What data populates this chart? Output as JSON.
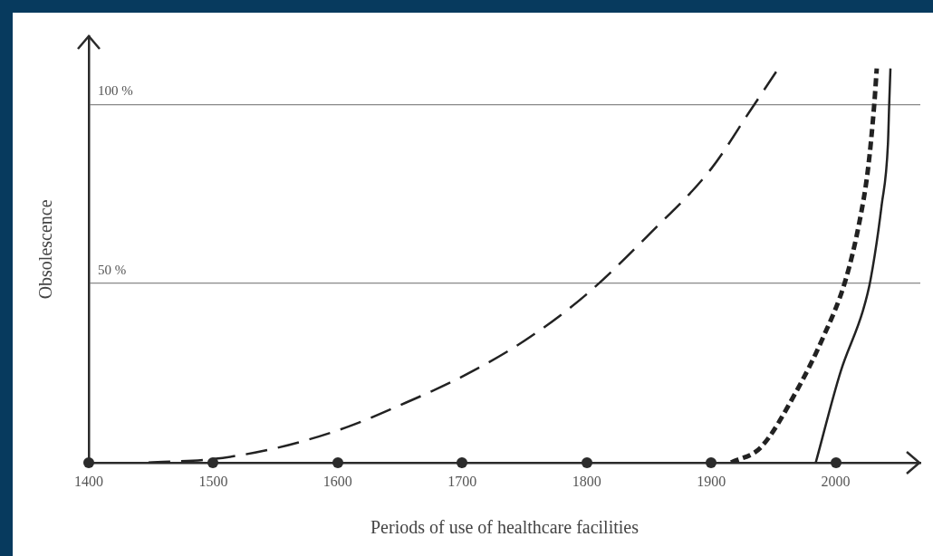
{
  "chart_data": {
    "type": "line",
    "xlabel": "Periods of use of healthcare facilities",
    "ylabel": "Obsolescence",
    "xlim": [
      1400,
      2068
    ],
    "xticks": [
      1400,
      1500,
      1600,
      1700,
      1800,
      1900,
      2000
    ],
    "ylim": [
      0,
      119
    ],
    "yticks": [
      {
        "value": 50,
        "label": "50 %"
      },
      {
        "value": 100,
        "label": "100 %"
      }
    ],
    "grid": "y",
    "legend": false,
    "marker": "none",
    "series": [
      {
        "color": "#222222",
        "line_style": "dashed",
        "x": [
          1448,
          1500,
          1550,
          1606,
          1650,
          1700,
          1750,
          1800,
          1851,
          1900,
          1930,
          1954
        ],
        "values": [
          0,
          1,
          4,
          9.7,
          16,
          24,
          34,
          47,
          64,
          82,
          97.5,
          110
        ]
      },
      {
        "color": "#222222",
        "line_style": "dotted",
        "x": [
          1916,
          1940,
          1968,
          1990,
          2008,
          2019,
          2026,
          2031,
          2033
        ],
        "values": [
          0,
          4.3,
          19.6,
          35,
          51,
          67,
          82,
          100,
          110
        ]
      },
      {
        "color": "#222222",
        "line_style": "solid",
        "x": [
          1984,
          2004,
          2022,
          2028,
          2037,
          2042,
          2043,
          2044
        ],
        "values": [
          0,
          25.4,
          42.5,
          51,
          72,
          89,
          100,
          110
        ]
      }
    ]
  }
}
